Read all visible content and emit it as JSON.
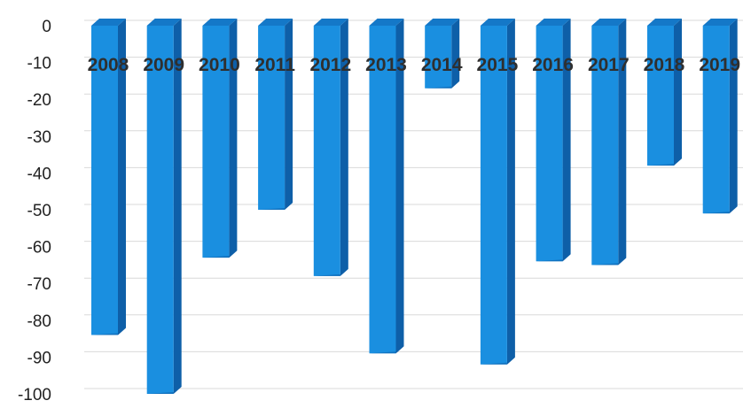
{
  "chart_data": {
    "type": "bar",
    "categories": [
      "2008",
      "2009",
      "2010",
      "2011",
      "2012",
      "2013",
      "2014",
      "2015",
      "2016",
      "2017",
      "2018",
      "2019"
    ],
    "values": [
      -84,
      -100,
      -63,
      -50,
      -68,
      -89,
      -17,
      -92,
      -64,
      -65,
      -38,
      -51
    ],
    "ylim": [
      -100,
      0
    ],
    "yticks": [
      0,
      -10,
      -20,
      -30,
      -40,
      -50,
      -60,
      -70,
      -80,
      -90,
      -100
    ],
    "grid": true,
    "style": "3d-column",
    "colors": {
      "bar_front": "#1a8fe0",
      "bar_side": "#0e5fa8",
      "bar_top": "#1478c8",
      "grid": "#d9d9d9",
      "axis_text": "#222222",
      "category_text": "#2f2f2f"
    }
  }
}
